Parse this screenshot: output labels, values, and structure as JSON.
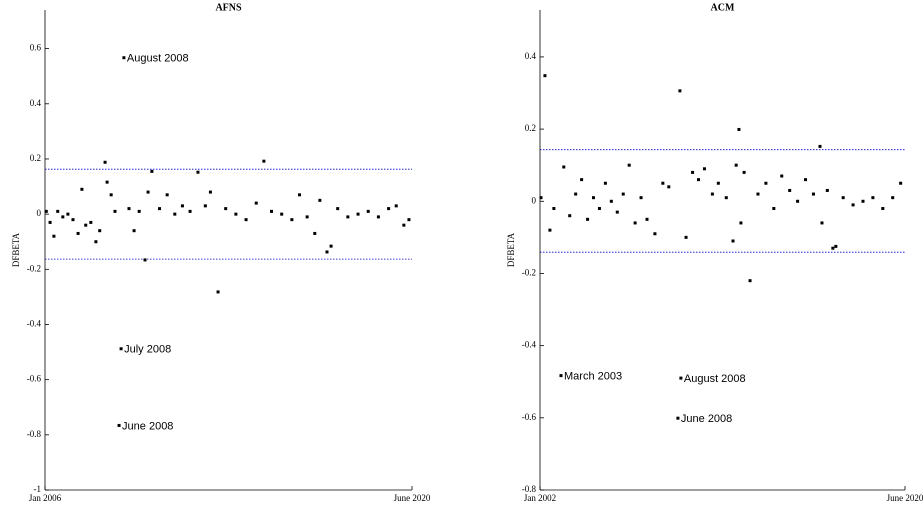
{
  "chart_data": [
    {
      "type": "scatter",
      "title": "AFNS",
      "y_label": "DFBETA",
      "color": "#000000",
      "xlim": [
        2006,
        2020.42
      ],
      "xticks": [
        {
          "value": 2006,
          "label": "Jan 2006"
        },
        {
          "value": 2020.42,
          "label": "June 2020"
        }
      ],
      "ylim": [
        -1,
        0.74
      ],
      "yticks": [
        -1,
        -0.8,
        -0.6,
        -0.4,
        -0.2,
        0,
        0.2,
        0.4,
        0.6
      ],
      "hlines": [
        0.163,
        -0.163
      ],
      "hline_color": "#0000cc",
      "x": [
        2006.05,
        2006.2,
        2006.35,
        2006.5,
        2006.7,
        2006.9,
        2007.1,
        2007.3,
        2007.45,
        2007.6,
        2007.8,
        2008.0,
        2008.15,
        2008.36,
        2008.44,
        2008.6,
        2008.75,
        2008.91,
        2008.99,
        2009.1,
        2009.3,
        2009.5,
        2009.7,
        2009.93,
        2010.05,
        2010.2,
        2010.5,
        2010.8,
        2011.1,
        2011.4,
        2011.7,
        2012.01,
        2012.3,
        2012.5,
        2012.8,
        2013.1,
        2013.5,
        2013.9,
        2014.3,
        2014.6,
        2014.9,
        2015.3,
        2015.7,
        2016.0,
        2016.3,
        2016.6,
        2016.8,
        2017.08,
        2017.24,
        2017.5,
        2017.9,
        2018.3,
        2018.7,
        2019.1,
        2019.5,
        2019.8,
        2020.1,
        2020.3
      ],
      "values": [
        0.01,
        -0.03,
        -0.08,
        0.01,
        -0.01,
        0.0,
        -0.02,
        -0.07,
        0.09,
        -0.04,
        -0.03,
        -0.1,
        -0.06,
        0.188,
        0.116,
        0.07,
        0.01,
        -0.766,
        -0.488,
        0.567,
        0.02,
        -0.06,
        0.01,
        -0.166,
        0.08,
        0.155,
        0.02,
        0.07,
        0.0,
        0.03,
        0.01,
        0.152,
        0.03,
        0.08,
        -0.282,
        0.02,
        0.0,
        -0.02,
        0.04,
        0.192,
        0.01,
        0.0,
        -0.02,
        0.07,
        -0.01,
        -0.07,
        0.05,
        -0.137,
        -0.116,
        0.02,
        -0.01,
        0.0,
        0.01,
        -0.01,
        0.02,
        0.03,
        -0.04,
        -0.02
      ],
      "annotations": [
        {
          "text": "August 2008",
          "x": 2009.1,
          "y": 0.567
        },
        {
          "text": "July 2008",
          "x": 2008.99,
          "y": -0.488
        },
        {
          "text": "June 2008",
          "x": 2008.91,
          "y": -0.766
        }
      ]
    },
    {
      "type": "scatter",
      "title": "ACM",
      "y_label": "DFBETA",
      "color": "#000000",
      "xlim": [
        2002,
        2020.42
      ],
      "xticks": [
        {
          "value": 2002,
          "label": "Jan 2002"
        },
        {
          "value": 2020.42,
          "label": "June 2020"
        }
      ],
      "ylim": [
        -0.8,
        0.53
      ],
      "yticks": [
        -0.8,
        -0.6,
        -0.4,
        -0.2,
        0,
        0.2,
        0.4
      ],
      "hlines": [
        0.143,
        -0.141
      ],
      "hline_color": "#0000cc",
      "x": [
        2002.05,
        2002.25,
        2002.5,
        2002.7,
        2003.06,
        2003.2,
        2003.5,
        2003.8,
        2004.1,
        2004.4,
        2004.7,
        2005.0,
        2005.3,
        2005.6,
        2005.9,
        2006.2,
        2006.5,
        2006.8,
        2007.1,
        2007.4,
        2007.8,
        2008.2,
        2008.5,
        2008.96,
        2009.06,
        2009.11,
        2009.37,
        2009.7,
        2010.0,
        2010.3,
        2010.7,
        2011.0,
        2011.4,
        2011.74,
        2011.9,
        2012.04,
        2012.14,
        2012.3,
        2012.6,
        2013.0,
        2013.4,
        2013.8,
        2014.2,
        2014.6,
        2015.0,
        2015.4,
        2015.8,
        2016.13,
        2016.23,
        2016.5,
        2016.78,
        2016.93,
        2017.3,
        2017.8,
        2018.3,
        2018.8,
        2019.3,
        2019.8,
        2020.2
      ],
      "values": [
        0.01,
        0.348,
        -0.08,
        -0.02,
        -0.483,
        0.095,
        -0.04,
        0.02,
        0.06,
        -0.05,
        0.01,
        -0.02,
        0.05,
        0.0,
        -0.03,
        0.02,
        0.1,
        -0.06,
        0.01,
        -0.05,
        -0.09,
        0.05,
        0.04,
        -0.601,
        0.306,
        -0.49,
        -0.1,
        0.08,
        0.06,
        0.09,
        0.02,
        0.05,
        0.01,
        -0.11,
        0.1,
        0.199,
        -0.06,
        0.08,
        -0.22,
        0.02,
        0.05,
        -0.02,
        0.07,
        0.03,
        0.0,
        0.06,
        0.02,
        0.152,
        -0.06,
        0.03,
        -0.13,
        -0.125,
        0.01,
        -0.01,
        0.0,
        0.01,
        -0.02,
        0.01,
        0.05
      ],
      "annotations": [
        {
          "text": "March 2003",
          "x": 2003.06,
          "y": -0.483
        },
        {
          "text": "August 2008",
          "x": 2009.11,
          "y": -0.49
        },
        {
          "text": "June 2008",
          "x": 2008.96,
          "y": -0.601
        }
      ]
    }
  ]
}
